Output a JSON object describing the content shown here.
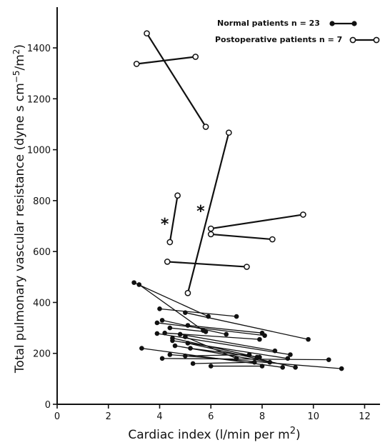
{
  "chart_data": {
    "type": "scatter",
    "title": "",
    "xlabel": "Cardiac index (l/min per m",
    "xlabel_sup": "2",
    "xlabel_close": ")",
    "ylabel": "Total pulmonary vascular resistance (dyne s cm",
    "ylabel_sup1": "−5",
    "ylabel_mid": "/m",
    "ylabel_sup2": "2",
    "ylabel_close": ")",
    "xlim": [
      0,
      12.6
    ],
    "ylim": [
      0,
      1560
    ],
    "x_ticks": [
      "0",
      "2",
      "4",
      "6",
      "8",
      "10",
      "12"
    ],
    "y_ticks": [
      "0",
      "200",
      "400",
      "600",
      "800",
      "1000",
      "1200",
      "1400"
    ],
    "grid": false,
    "legend_position": "top-right",
    "legend": [
      {
        "label": "Normal patients n = 23",
        "marker": "filled"
      },
      {
        "label": "Postoperative patients n = 7",
        "marker": "open"
      }
    ],
    "annotations": [
      {
        "text": "*",
        "x": 4.2,
        "y": 710
      },
      {
        "text": "*",
        "x": 5.6,
        "y": 760
      }
    ],
    "series": [
      {
        "name": "Normal patients n = 23",
        "marker": "filled",
        "pairs": [
          [
            [
              3.0,
              478
            ],
            [
              5.9,
              345
            ]
          ],
          [
            [
              3.2,
              470
            ],
            [
              5.7,
              290
            ]
          ],
          [
            [
              4.0,
              375
            ],
            [
              7.0,
              345
            ]
          ],
          [
            [
              4.1,
              330
            ],
            [
              6.6,
              275
            ]
          ],
          [
            [
              5.0,
              360
            ],
            [
              9.8,
              255
            ]
          ],
          [
            [
              3.9,
              320
            ],
            [
              8.1,
              270
            ]
          ],
          [
            [
              3.9,
              278
            ],
            [
              9.1,
              195
            ]
          ],
          [
            [
              4.2,
              280
            ],
            [
              7.9,
              255
            ]
          ],
          [
            [
              4.4,
              300
            ],
            [
              5.8,
              285
            ]
          ],
          [
            [
              4.5,
              260
            ],
            [
              7.8,
              185
            ]
          ],
          [
            [
              5.1,
              310
            ],
            [
              8.0,
              280
            ]
          ],
          [
            [
              3.3,
              220
            ],
            [
              8.8,
              145
            ]
          ],
          [
            [
              4.1,
              180
            ],
            [
              10.6,
              175
            ]
          ],
          [
            [
              4.4,
              195
            ],
            [
              11.1,
              140
            ]
          ],
          [
            [
              4.5,
              250
            ],
            [
              9.0,
              180
            ]
          ],
          [
            [
              4.6,
              230
            ],
            [
              8.3,
              165
            ]
          ],
          [
            [
              4.8,
              275
            ],
            [
              8.5,
              210
            ]
          ],
          [
            [
              5.0,
              265
            ],
            [
              7.0,
              180
            ]
          ],
          [
            [
              5.1,
              240
            ],
            [
              9.3,
              145
            ]
          ],
          [
            [
              5.2,
              220
            ],
            [
              7.9,
              185
            ]
          ],
          [
            [
              5.0,
              190
            ],
            [
              7.5,
              195
            ]
          ],
          [
            [
              5.3,
              160
            ],
            [
              7.7,
              165
            ]
          ],
          [
            [
              6.0,
              150
            ],
            [
              8.0,
              150
            ]
          ]
        ]
      },
      {
        "name": "Postoperative patients n = 7",
        "marker": "open",
        "pairs": [
          [
            [
              3.1,
              1337
            ],
            [
              5.4,
              1365
            ]
          ],
          [
            [
              3.5,
              1457
            ],
            [
              5.8,
              1090
            ]
          ],
          [
            [
              4.4,
              637
            ],
            [
              4.7,
              820
            ]
          ],
          [
            [
              5.1,
              437
            ],
            [
              6.7,
              1067
            ]
          ],
          [
            [
              6.0,
              690
            ],
            [
              9.6,
              745
            ]
          ],
          [
            [
              6.0,
              668
            ],
            [
              8.4,
              648
            ]
          ],
          [
            [
              4.3,
              560
            ],
            [
              7.4,
              540
            ]
          ]
        ]
      }
    ]
  }
}
